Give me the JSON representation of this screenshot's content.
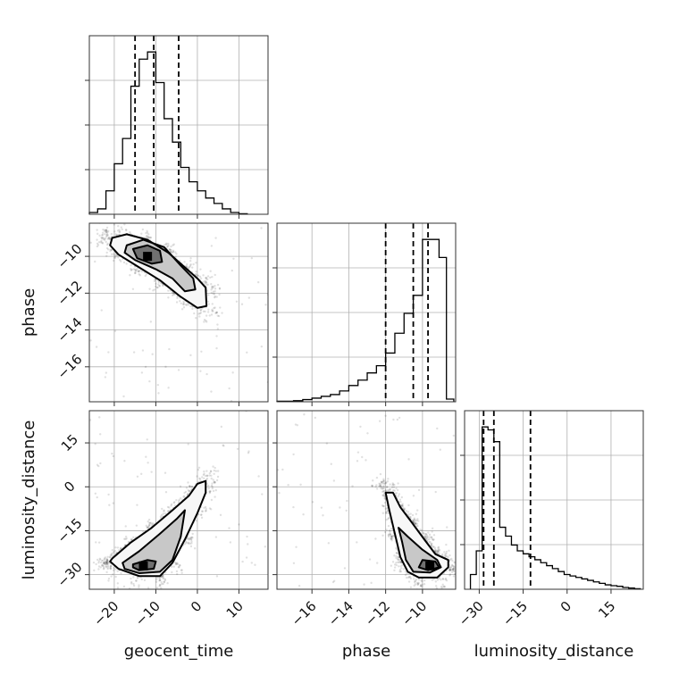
{
  "chart_data": {
    "type": "corner",
    "parameters": [
      {
        "name": "geocent_time",
        "range": [
          -26,
          17
        ],
        "ticks": [
          -20,
          -10,
          0,
          10
        ],
        "tick_labels": [
          "−20",
          "−10",
          "0",
          "10"
        ],
        "quantiles": [
          -15,
          -10.5,
          -4.5
        ]
      },
      {
        "name": "phase",
        "range": [
          -17.9,
          -8.2
        ],
        "ticks": [
          -16,
          -14,
          -12,
          -10
        ],
        "tick_labels": [
          "−16",
          "−14",
          "−12",
          "−10"
        ],
        "quantiles": [
          -12,
          -10.5,
          -9.7
        ]
      },
      {
        "name": "luminosity_distance",
        "range": [
          -35,
          26
        ],
        "ticks": [
          -30,
          -15,
          0,
          15
        ],
        "tick_labels": [
          "−30",
          "−15",
          "0",
          "15"
        ],
        "quantiles": [
          -28.5,
          -25,
          -12.5
        ]
      }
    ],
    "histograms": [
      {
        "edges": [
          -26,
          -24,
          -22,
          -20,
          -18,
          -16,
          -14,
          -12,
          -10,
          -8,
          -6,
          -4,
          -2,
          0,
          2,
          4,
          6,
          8,
          10,
          12
        ],
        "counts": [
          0.01,
          0.03,
          0.13,
          0.28,
          0.42,
          0.71,
          0.86,
          0.9,
          0.73,
          0.53,
          0.4,
          0.26,
          0.18,
          0.13,
          0.09,
          0.06,
          0.03,
          0.01,
          0.003
        ]
      },
      {
        "edges": [
          -17.9,
          -17.0,
          -16.5,
          -16.0,
          -15.5,
          -15.0,
          -14.5,
          -14.0,
          -13.5,
          -13.0,
          -12.5,
          -12.0,
          -11.5,
          -11.0,
          -10.5,
          -10.0,
          -9.5,
          -9.1,
          -8.7,
          -8.3
        ],
        "counts": [
          0.003,
          0.006,
          0.012,
          0.02,
          0.03,
          0.04,
          0.06,
          0.09,
          0.12,
          0.16,
          0.2,
          0.27,
          0.38,
          0.49,
          0.59,
          0.9,
          0.9,
          0.8,
          0.015
        ]
      },
      {
        "edges": [
          -33,
          -31,
          -29,
          -27,
          -25,
          -23,
          -21,
          -19,
          -17,
          -15,
          -13,
          -11,
          -9,
          -7,
          -5,
          -3,
          -1,
          1,
          3,
          5,
          7,
          9,
          11,
          13,
          15,
          17,
          19,
          21,
          23,
          25
        ],
        "counts": [
          0.05,
          0.13,
          0.55,
          0.54,
          0.5,
          0.21,
          0.18,
          0.15,
          0.13,
          0.12,
          0.11,
          0.1,
          0.09,
          0.08,
          0.07,
          0.06,
          0.05,
          0.045,
          0.04,
          0.035,
          0.03,
          0.025,
          0.02,
          0.015,
          0.012,
          0.01,
          0.006,
          0.004,
          0.002
        ]
      }
    ],
    "scatter_panels": [
      {
        "x": "geocent_time",
        "y": "phase",
        "mode": [
          -12,
          -10
        ],
        "correlation": "negative",
        "contours": [
          [
            [
              -20.5,
              -9.0
            ],
            [
              -17,
              -8.8
            ],
            [
              -12,
              -9.1
            ],
            [
              -7,
              -9.8
            ],
            [
              -3,
              -10.6
            ],
            [
              0,
              -11.2
            ],
            [
              2,
              -11.7
            ],
            [
              2.2,
              -12.7
            ],
            [
              0,
              -12.8
            ],
            [
              -4,
              -12.2
            ],
            [
              -9,
              -11.3
            ],
            [
              -14,
              -10.6
            ],
            [
              -19,
              -9.9
            ],
            [
              -21,
              -9.4
            ],
            [
              -20.5,
              -9.0
            ]
          ],
          [
            [
              -17,
              -9.4
            ],
            [
              -13,
              -9.1
            ],
            [
              -8,
              -9.5
            ],
            [
              -4,
              -10.5
            ],
            [
              -1,
              -11.2
            ],
            [
              -0.5,
              -11.8
            ],
            [
              -3,
              -11.9
            ],
            [
              -6,
              -11.2
            ],
            [
              -10,
              -10.7
            ],
            [
              -15,
              -10.2
            ],
            [
              -17.5,
              -9.8
            ],
            [
              -17,
              -9.4
            ]
          ],
          [
            [
              -15.5,
              -9.6
            ],
            [
              -12,
              -9.4
            ],
            [
              -9,
              -9.7
            ],
            [
              -8.5,
              -10.3
            ],
            [
              -11,
              -10.4
            ],
            [
              -14.5,
              -10.1
            ],
            [
              -15.5,
              -9.6
            ]
          ]
        ]
      },
      {
        "x": "geocent_time",
        "y": "luminosity_distance",
        "mode": [
          -13,
          -27
        ],
        "correlation": "positive",
        "contours": [
          [
            [
              -20.5,
              -24.5
            ],
            [
              -16,
              -19
            ],
            [
              -11,
              -14
            ],
            [
              -6,
              -8
            ],
            [
              -2,
              -3
            ],
            [
              0,
              1
            ],
            [
              2,
              2
            ],
            [
              2,
              -2
            ],
            [
              0,
              -9
            ],
            [
              -3,
              -18
            ],
            [
              -6,
              -26
            ],
            [
              -9,
              -30.5
            ],
            [
              -14,
              -30.5
            ],
            [
              -19,
              -28
            ],
            [
              -21,
              -25.5
            ],
            [
              -20.5,
              -24.5
            ]
          ],
          [
            [
              -18,
              -26
            ],
            [
              -14,
              -22
            ],
            [
              -9,
              -16
            ],
            [
              -5,
              -11
            ],
            [
              -3,
              -8
            ],
            [
              -4,
              -17
            ],
            [
              -6,
              -25
            ],
            [
              -9,
              -29
            ],
            [
              -14,
              -29.5
            ],
            [
              -17.5,
              -28
            ],
            [
              -18,
              -26
            ]
          ],
          [
            [
              -15.5,
              -26.5
            ],
            [
              -12,
              -25
            ],
            [
              -10,
              -25.5
            ],
            [
              -10.5,
              -28
            ],
            [
              -14,
              -28.5
            ],
            [
              -15.5,
              -27.5
            ],
            [
              -15.5,
              -26.5
            ]
          ]
        ]
      },
      {
        "x": "phase",
        "y": "luminosity_distance",
        "mode": [
          -9.6,
          -27
        ],
        "correlation": "negative",
        "contours": [
          [
            [
              -12,
              -2
            ],
            [
              -11.6,
              -2
            ],
            [
              -11.2,
              -7
            ],
            [
              -10.6,
              -12
            ],
            [
              -9.9,
              -18
            ],
            [
              -9.3,
              -23
            ],
            [
              -8.6,
              -25
            ],
            [
              -8.6,
              -27.5
            ],
            [
              -9.2,
              -31
            ],
            [
              -10.2,
              -31
            ],
            [
              -10.8,
              -29
            ],
            [
              -11.2,
              -24
            ],
            [
              -11.5,
              -16
            ],
            [
              -11.8,
              -8
            ],
            [
              -12,
              -2
            ]
          ],
          [
            [
              -11.3,
              -14
            ],
            [
              -10.8,
              -17
            ],
            [
              -10.0,
              -21.5
            ],
            [
              -9.2,
              -25
            ],
            [
              -9.0,
              -27.5
            ],
            [
              -9.6,
              -29.3
            ],
            [
              -10.5,
              -29
            ],
            [
              -10.9,
              -25
            ],
            [
              -11.1,
              -19
            ],
            [
              -11.3,
              -14
            ]
          ],
          [
            [
              -10.0,
              -25
            ],
            [
              -9.3,
              -25.5
            ],
            [
              -9.1,
              -27.5
            ],
            [
              -9.7,
              -28.5
            ],
            [
              -10.2,
              -27.5
            ],
            [
              -10.0,
              -25
            ]
          ]
        ]
      }
    ],
    "grid": true
  }
}
